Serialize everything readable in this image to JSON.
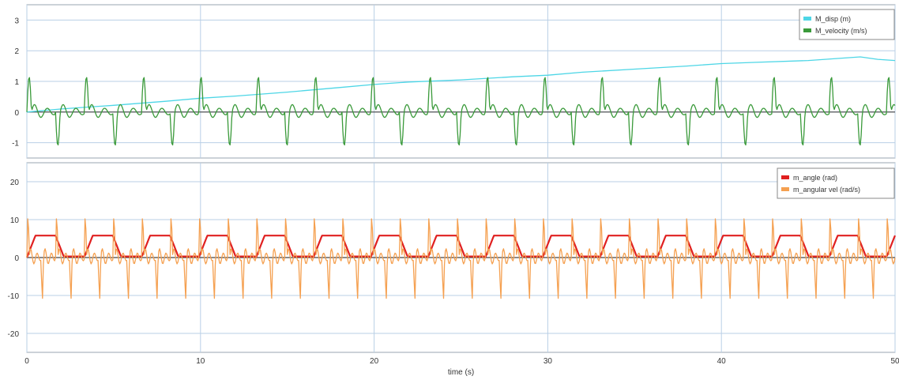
{
  "chart_data": [
    {
      "type": "line",
      "title": "",
      "xlabel": "",
      "ylabel": "",
      "xlim": [
        0,
        50
      ],
      "ylim": [
        -1.5,
        3.5
      ],
      "x_ticks": [
        0,
        10,
        20,
        30,
        40,
        50
      ],
      "y_ticks": [
        -1,
        0,
        1,
        2,
        3
      ],
      "grid": true,
      "legend_position": "top-right",
      "series": [
        {
          "name": "M_disp (m)",
          "color": "#4dd6e6",
          "x": [
            0,
            2,
            5,
            8,
            10,
            12,
            15,
            18,
            20,
            22,
            25,
            28,
            30,
            32,
            35,
            38,
            40,
            42,
            45,
            48,
            49,
            50
          ],
          "y": [
            0,
            0.1,
            0.22,
            0.35,
            0.45,
            0.52,
            0.65,
            0.8,
            0.9,
            0.98,
            1.05,
            1.15,
            1.2,
            1.3,
            1.4,
            1.5,
            1.58,
            1.62,
            1.68,
            1.8,
            1.72,
            1.68
          ]
        },
        {
          "name": "M_velocity (m/s)",
          "color": "#3a9a3a",
          "period": 3.3,
          "peak": 1.15,
          "trough": -1.1,
          "x": [
            0,
            0.8,
            2.6,
            4.3,
            6.1,
            7.6,
            9.4,
            10.9,
            12.7,
            14.2,
            16.0,
            17.5,
            19.3,
            20.8,
            22.6,
            24.1,
            25.9,
            27.4,
            29.2,
            30.7,
            32.5,
            34.0,
            35.8,
            37.3,
            39.1,
            40.6,
            42.4,
            43.9,
            45.7,
            47.2,
            49.0,
            50
          ],
          "y": [
            0,
            1.15,
            -1.05,
            1.1,
            -1.05,
            1.15,
            -1.05,
            1.1,
            -1.05,
            1.1,
            -1.05,
            1.1,
            -1.05,
            1.15,
            -1.1,
            1.1,
            -1.05,
            1.1,
            -1.05,
            1.1,
            -1.05,
            1.1,
            -1.05,
            1.1,
            -1.05,
            1.1,
            -1.05,
            1.05,
            -1.05,
            1.05,
            -1.0,
            0
          ]
        }
      ]
    },
    {
      "type": "line",
      "title": "",
      "xlabel": "time (s)",
      "ylabel": "",
      "xlim": [
        0,
        50
      ],
      "ylim": [
        -25,
        25
      ],
      "x_ticks": [
        0,
        10,
        20,
        30,
        40,
        50
      ],
      "y_ticks": [
        -20,
        -10,
        0,
        10,
        20
      ],
      "grid": true,
      "legend_position": "top-right",
      "series": [
        {
          "name": "m_angle (rad)",
          "color": "#e02020",
          "period": 3.3,
          "x": [
            0,
            0.5,
            1.2,
            2.0,
            2.8,
            3.4,
            4.0,
            4.6,
            5.4,
            6.0,
            6.6,
            7.3,
            8.0,
            8.6,
            9.3,
            10,
            11,
            12,
            13,
            14,
            15,
            16,
            17,
            18,
            19,
            20,
            22,
            24,
            26,
            28,
            30,
            32,
            34,
            36,
            38,
            40,
            42,
            44,
            46,
            48,
            50
          ],
          "y": [
            0,
            0.5,
            6,
            6,
            0.2,
            0,
            0,
            6,
            6,
            6,
            0.2,
            0,
            5.8,
            5.8,
            0.5,
            0.2,
            5.8,
            1,
            5.6,
            0.8,
            5.6,
            1,
            5.6,
            1,
            5.6,
            1,
            5.6,
            1,
            5.6,
            1,
            5.6,
            1,
            5.6,
            1,
            5.6,
            1,
            5.6,
            1,
            5.6,
            1,
            1
          ]
        },
        {
          "name": "m_angular vel (rad/s)",
          "color": "#f5a050",
          "period": 1.65,
          "peak": 11,
          "trough": -11,
          "x": [
            0,
            0.8,
            2.6,
            4.3,
            6.1,
            7.6,
            9.4,
            10.9,
            12.7,
            14.2,
            16.0,
            17.5,
            19.3,
            20.8,
            22.6,
            24.1,
            25.9,
            27.4,
            29.2,
            30.7,
            32.5,
            34.0,
            35.8,
            37.3,
            39.1,
            40.6,
            42.4,
            43.9,
            45.7,
            47.2,
            49.0,
            50
          ],
          "y": [
            0,
            11,
            -11,
            11,
            -11,
            11,
            -11,
            11,
            -11,
            11,
            -11,
            11,
            -11,
            11,
            -11,
            11,
            -11,
            11,
            -11,
            11,
            -11,
            11,
            -11,
            11,
            -11,
            11,
            -11,
            11,
            -11,
            11,
            -11,
            0
          ]
        }
      ]
    }
  ]
}
